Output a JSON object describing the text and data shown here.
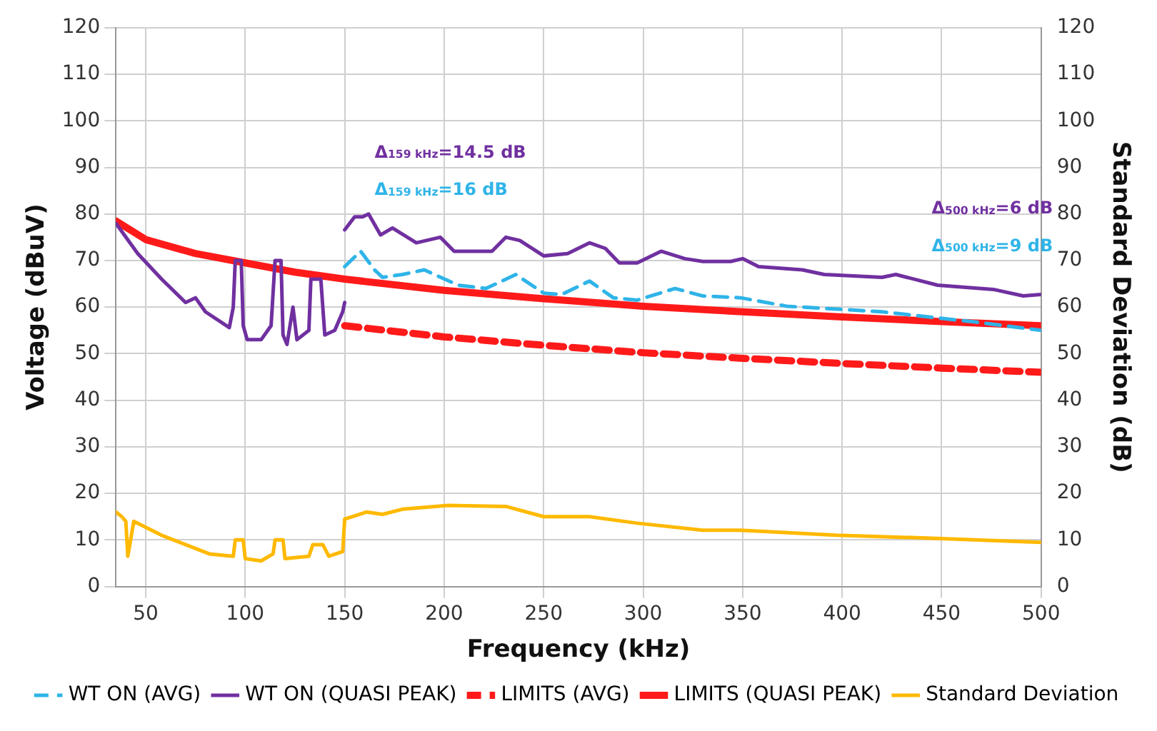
{
  "chart_data": {
    "type": "line",
    "xlabel": "Frequency (kHz)",
    "ylabel": "Voltage (dBuV)",
    "y2label": "Standard Deviation (dB)",
    "xlim": [
      35,
      500
    ],
    "xticks": [
      50,
      100,
      150,
      200,
      250,
      300,
      350,
      400,
      450,
      500
    ],
    "ylim": [
      0,
      120
    ],
    "yticks": [
      0,
      10,
      20,
      30,
      40,
      50,
      60,
      70,
      80,
      90,
      100,
      110,
      120
    ],
    "y2lim": [
      0,
      120
    ],
    "y2ticks": [
      0,
      10,
      20,
      30,
      40,
      50,
      60,
      70,
      80,
      90,
      100,
      110,
      120
    ],
    "grid": true,
    "legend": "bottom",
    "marker": "none",
    "annotations": [
      "Δ$_{159 kHz}$=14.5 dB",
      "Δ$_{159 kHz}$=16 dB",
      "Δ$_{500 kHz}$=6 dB",
      "Δ$_{500 kHz}$=9 dB"
    ],
    "series": [
      {
        "name": "WT ON (AVG)",
        "color": "#2fb4e8",
        "line_style": "dashed",
        "x": [
          150,
          158,
          165,
          169,
          179,
          190,
          207,
          221,
          236,
          250,
          259,
          273,
          285,
          297,
          316,
          330,
          349,
          372,
          420,
          467,
          500
        ],
        "values": [
          68.7,
          72,
          68,
          66.4,
          67,
          68,
          64.7,
          64,
          67,
          63,
          62.7,
          65.6,
          62,
          61.5,
          64,
          62.4,
          62,
          60.2,
          59,
          56.8,
          55
        ]
      },
      {
        "name": "WT ON (QUASI PEAK)",
        "color": "#7030a0",
        "line_style": "solid",
        "x": [
          35,
          46,
          58,
          70,
          75,
          80,
          92,
          94,
          95,
          98,
          99,
          101,
          108,
          113,
          115,
          118,
          119,
          121,
          124,
          126,
          132,
          133,
          138,
          140,
          145,
          149,
          150,
          null,
          150,
          155,
          159,
          162,
          168,
          174,
          186,
          198,
          205,
          224,
          231,
          238,
          250,
          262,
          273,
          281,
          288,
          297,
          309,
          321,
          330,
          344,
          350,
          358,
          380,
          391,
          420,
          427,
          448,
          476,
          491,
          500
        ],
        "values": [
          78,
          71.5,
          66,
          61,
          62,
          59,
          55.6,
          60,
          70,
          70,
          56,
          53,
          53,
          56,
          70,
          70,
          54,
          52,
          60,
          53,
          55,
          66,
          66,
          54,
          55,
          59,
          61,
          null,
          76.6,
          79.4,
          79.4,
          80,
          75.5,
          77,
          73.8,
          75,
          72,
          72,
          75,
          74.3,
          71,
          71.5,
          73.8,
          72.6,
          69.5,
          69.5,
          72,
          70.4,
          69.8,
          69.8,
          70.4,
          68.7,
          68,
          67,
          66.4,
          67,
          64.7,
          63.8,
          62.4,
          62.7
        ]
      },
      {
        "name": "LIMITS (AVG)",
        "color": "#ff1a1a",
        "line_style": "dashed",
        "x": [
          150,
          200,
          250,
          300,
          350,
          400,
          450,
          500
        ],
        "values": [
          56,
          53.6,
          51.8,
          50.2,
          49,
          47.9,
          46.9,
          46
        ]
      },
      {
        "name": "LIMITS (QUASI PEAK)",
        "color": "#ff1a1a",
        "line_style": "solid",
        "x": [
          35,
          50,
          75,
          100,
          125,
          150,
          200,
          250,
          300,
          350,
          400,
          450,
          500
        ],
        "values": [
          78.5,
          74.5,
          71.5,
          69.5,
          67.5,
          66,
          63.6,
          61.8,
          60.2,
          59,
          57.9,
          56.9,
          56
        ]
      },
      {
        "name": "Standard Deviation",
        "color": "#ffb900",
        "line_style": "solid",
        "axis": "y2",
        "x": [
          35,
          38,
          40,
          41,
          44,
          58,
          70,
          82,
          94,
          95,
          99,
          100,
          108,
          114,
          115,
          119,
          120,
          132,
          134,
          139,
          142,
          149,
          150,
          161,
          169,
          179,
          202,
          231,
          250,
          273,
          297,
          330,
          349,
          397,
          443,
          500
        ],
        "values": [
          16,
          15,
          14,
          6.5,
          14,
          11,
          9,
          7,
          6.5,
          10,
          10,
          6,
          5.5,
          7,
          10,
          10,
          6,
          6.5,
          9,
          9,
          6.5,
          7.5,
          14.5,
          16,
          15.5,
          16.6,
          17.4,
          17.2,
          15,
          15,
          13.6,
          12.1,
          12.1,
          11,
          10.4,
          9.5
        ]
      }
    ]
  }
}
